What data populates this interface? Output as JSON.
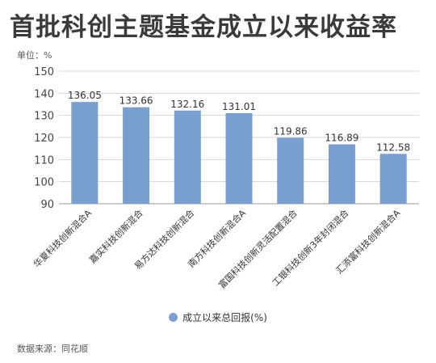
{
  "chart_data": {
    "type": "bar",
    "title": "首批科创主题基金成立以来收益率",
    "unit_label": "单位：%",
    "categories": [
      "华夏科技创新混合A",
      "嘉实科技创新混合",
      "易方达科技创新混合",
      "南方科技创新混合A",
      "富国科技创新灵活配置混合",
      "工银科技创新3年封闭混合",
      "汇添富科技创新混合A"
    ],
    "series": [
      {
        "name": "成立以来总回报(%)",
        "values": [
          136.05,
          133.66,
          132.16,
          131.01,
          119.86,
          116.89,
          112.58
        ]
      }
    ],
    "value_labels": [
      "136.05",
      "133.66",
      "132.16",
      "131.01",
      "119.86",
      "116.89",
      "112.58"
    ],
    "ylim": [
      90,
      150
    ],
    "yticks": [
      90,
      100,
      110,
      120,
      130,
      140,
      150
    ],
    "grid": true,
    "legend": "bottom",
    "bar_color": "#789fd0",
    "source": "数据来源：同花顺"
  }
}
